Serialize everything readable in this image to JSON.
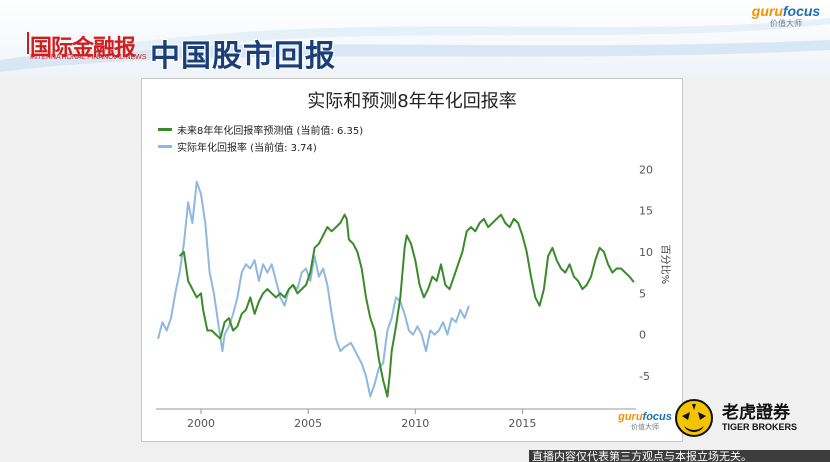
{
  "banner": {
    "news_logo": "国际金融报",
    "news_logo_en": "INTERNATIONAL FINANCIAL NEWS",
    "headline": "中国股市回报",
    "brand_word_a": "guru",
    "brand_word_b": "focus",
    "brand_sub": "价值大师"
  },
  "chart_brand": {
    "brand_word_a": "guru",
    "brand_word_b": "focus",
    "brand_sub": "价值大师"
  },
  "tiger": {
    "name": "老虎證券",
    "name_en": "TIGER BROKERS"
  },
  "disclaimer": "直播内容仅代表第三方观点与本报立场无关。",
  "colors": {
    "predicted": "#3a8a2a",
    "actual": "#8fb8e0",
    "headline": "#1a3f78",
    "brand_red": "#d21d1d"
  },
  "chart_data": {
    "type": "line",
    "title": "实际和预测8年年化回报率",
    "ylabel": "百分比%",
    "xlim": [
      1997.9,
      2020.3
    ],
    "ylim": [
      -9,
      21
    ],
    "x_ticks": [
      2000,
      2005,
      2010,
      2015
    ],
    "y_ticks": [
      -5,
      0,
      5,
      10,
      15,
      20
    ],
    "grid": false,
    "legend_position": "top-left",
    "series": [
      {
        "name": "未来8年年化回报率预测值 (当前值: 6.35)",
        "color": "#3a8a2a",
        "points": [
          [
            1999.0,
            9.5
          ],
          [
            1999.2,
            10.0
          ],
          [
            1999.4,
            6.5
          ],
          [
            1999.6,
            5.5
          ],
          [
            1999.8,
            4.5
          ],
          [
            2000.0,
            5.0
          ],
          [
            2000.1,
            3.0
          ],
          [
            2000.3,
            0.5
          ],
          [
            2000.5,
            0.5
          ],
          [
            2000.7,
            0.0
          ],
          [
            2000.9,
            -0.5
          ],
          [
            2001.1,
            1.5
          ],
          [
            2001.3,
            2.0
          ],
          [
            2001.5,
            0.5
          ],
          [
            2001.7,
            1.0
          ],
          [
            2001.9,
            2.5
          ],
          [
            2002.1,
            3.0
          ],
          [
            2002.3,
            4.5
          ],
          [
            2002.5,
            2.5
          ],
          [
            2002.7,
            4.0
          ],
          [
            2002.9,
            5.0
          ],
          [
            2003.1,
            5.5
          ],
          [
            2003.3,
            5.0
          ],
          [
            2003.5,
            4.5
          ],
          [
            2003.7,
            5.0
          ],
          [
            2003.9,
            4.5
          ],
          [
            2004.1,
            5.5
          ],
          [
            2004.3,
            6.0
          ],
          [
            2004.5,
            5.0
          ],
          [
            2004.7,
            5.5
          ],
          [
            2004.9,
            6.0
          ],
          [
            2005.1,
            7.5
          ],
          [
            2005.3,
            10.5
          ],
          [
            2005.5,
            11.0
          ],
          [
            2005.7,
            12.0
          ],
          [
            2005.9,
            13.0
          ],
          [
            2006.1,
            12.5
          ],
          [
            2006.3,
            13.0
          ],
          [
            2006.5,
            13.5
          ],
          [
            2006.7,
            14.5
          ],
          [
            2006.8,
            14.0
          ],
          [
            2006.9,
            11.5
          ],
          [
            2007.1,
            11.0
          ],
          [
            2007.3,
            10.0
          ],
          [
            2007.5,
            8.0
          ],
          [
            2007.7,
            4.5
          ],
          [
            2007.9,
            2.0
          ],
          [
            2008.1,
            0.5
          ],
          [
            2008.3,
            -3.0
          ],
          [
            2008.5,
            -5.5
          ],
          [
            2008.7,
            -7.5
          ],
          [
            2008.8,
            -5.0
          ],
          [
            2008.9,
            -2.0
          ],
          [
            2009.1,
            1.0
          ],
          [
            2009.3,
            4.5
          ],
          [
            2009.5,
            10.5
          ],
          [
            2009.6,
            12.0
          ],
          [
            2009.8,
            11.0
          ],
          [
            2010.0,
            9.0
          ],
          [
            2010.2,
            6.0
          ],
          [
            2010.4,
            4.5
          ],
          [
            2010.6,
            5.5
          ],
          [
            2010.8,
            7.0
          ],
          [
            2011.0,
            6.5
          ],
          [
            2011.2,
            8.5
          ],
          [
            2011.4,
            6.0
          ],
          [
            2011.6,
            5.5
          ],
          [
            2011.8,
            7.0
          ],
          [
            2012.0,
            8.5
          ],
          [
            2012.2,
            10.0
          ],
          [
            2012.4,
            12.5
          ],
          [
            2012.6,
            13.0
          ],
          [
            2012.8,
            12.5
          ],
          [
            2013.0,
            13.5
          ],
          [
            2013.2,
            14.0
          ],
          [
            2013.4,
            13.0
          ],
          [
            2013.6,
            13.5
          ],
          [
            2013.8,
            14.0
          ],
          [
            2014.0,
            14.5
          ],
          [
            2014.2,
            13.5
          ],
          [
            2014.4,
            13.0
          ],
          [
            2014.6,
            14.0
          ],
          [
            2014.8,
            13.5
          ],
          [
            2015.0,
            12.0
          ],
          [
            2015.2,
            10.0
          ],
          [
            2015.4,
            7.0
          ],
          [
            2015.6,
            4.5
          ],
          [
            2015.8,
            3.5
          ],
          [
            2016.0,
            5.5
          ],
          [
            2016.2,
            9.5
          ],
          [
            2016.4,
            10.5
          ],
          [
            2016.6,
            9.0
          ],
          [
            2016.8,
            8.0
          ],
          [
            2017.0,
            7.5
          ],
          [
            2017.2,
            8.5
          ],
          [
            2017.4,
            7.0
          ],
          [
            2017.6,
            6.5
          ],
          [
            2017.8,
            5.5
          ],
          [
            2018.0,
            6.0
          ],
          [
            2018.2,
            7.0
          ],
          [
            2018.4,
            9.0
          ],
          [
            2018.6,
            10.5
          ],
          [
            2018.8,
            10.0
          ],
          [
            2019.0,
            8.5
          ],
          [
            2019.2,
            7.5
          ],
          [
            2019.4,
            8.0
          ],
          [
            2019.6,
            8.0
          ],
          [
            2019.8,
            7.5
          ],
          [
            2020.0,
            7.0
          ],
          [
            2020.2,
            6.35
          ]
        ]
      },
      {
        "name": "实际年化回报率 (当前值: 3.74)",
        "color": "#8fb8e0",
        "points": [
          [
            1998.0,
            -0.5
          ],
          [
            1998.2,
            1.5
          ],
          [
            1998.4,
            0.5
          ],
          [
            1998.6,
            2.0
          ],
          [
            1998.8,
            5.0
          ],
          [
            1999.0,
            7.5
          ],
          [
            1999.2,
            11.0
          ],
          [
            1999.4,
            16.0
          ],
          [
            1999.6,
            13.5
          ],
          [
            1999.8,
            18.5
          ],
          [
            2000.0,
            17.0
          ],
          [
            2000.2,
            13.5
          ],
          [
            2000.4,
            7.5
          ],
          [
            2000.6,
            5.0
          ],
          [
            2000.8,
            1.5
          ],
          [
            2001.0,
            -2.0
          ],
          [
            2001.1,
            0.0
          ],
          [
            2001.3,
            1.0
          ],
          [
            2001.5,
            2.5
          ],
          [
            2001.7,
            4.5
          ],
          [
            2001.9,
            7.5
          ],
          [
            2002.1,
            8.5
          ],
          [
            2002.3,
            8.0
          ],
          [
            2002.5,
            9.0
          ],
          [
            2002.7,
            6.5
          ],
          [
            2002.9,
            8.5
          ],
          [
            2003.1,
            7.5
          ],
          [
            2003.3,
            8.5
          ],
          [
            2003.5,
            6.5
          ],
          [
            2003.7,
            4.5
          ],
          [
            2003.9,
            3.5
          ],
          [
            2004.1,
            5.5
          ],
          [
            2004.3,
            6.0
          ],
          [
            2004.5,
            5.5
          ],
          [
            2004.7,
            7.5
          ],
          [
            2004.9,
            8.0
          ],
          [
            2005.1,
            6.5
          ],
          [
            2005.3,
            9.5
          ],
          [
            2005.5,
            7.0
          ],
          [
            2005.7,
            8.0
          ],
          [
            2005.9,
            6.0
          ],
          [
            2006.1,
            2.5
          ],
          [
            2006.3,
            -0.5
          ],
          [
            2006.5,
            -2.0
          ],
          [
            2006.7,
            -1.5
          ],
          [
            2007.0,
            -1.0
          ],
          [
            2007.3,
            -2.5
          ],
          [
            2007.5,
            -3.5
          ],
          [
            2007.7,
            -5.0
          ],
          [
            2007.9,
            -7.5
          ],
          [
            2008.1,
            -6.0
          ],
          [
            2008.3,
            -4.0
          ],
          [
            2008.5,
            -3.5
          ],
          [
            2008.7,
            0.5
          ],
          [
            2008.9,
            2.0
          ],
          [
            2009.1,
            4.5
          ],
          [
            2009.3,
            4.0
          ],
          [
            2009.5,
            2.5
          ],
          [
            2009.7,
            0.5
          ],
          [
            2009.9,
            0.0
          ],
          [
            2010.1,
            1.0
          ],
          [
            2010.3,
            0.0
          ],
          [
            2010.5,
            -2.0
          ],
          [
            2010.7,
            0.5
          ],
          [
            2010.9,
            0.0
          ],
          [
            2011.1,
            0.5
          ],
          [
            2011.3,
            1.5
          ],
          [
            2011.5,
            0.0
          ],
          [
            2011.7,
            2.0
          ],
          [
            2011.9,
            1.5
          ],
          [
            2012.1,
            3.0
          ],
          [
            2012.3,
            2.0
          ],
          [
            2012.5,
            3.5
          ]
        ]
      }
    ]
  }
}
